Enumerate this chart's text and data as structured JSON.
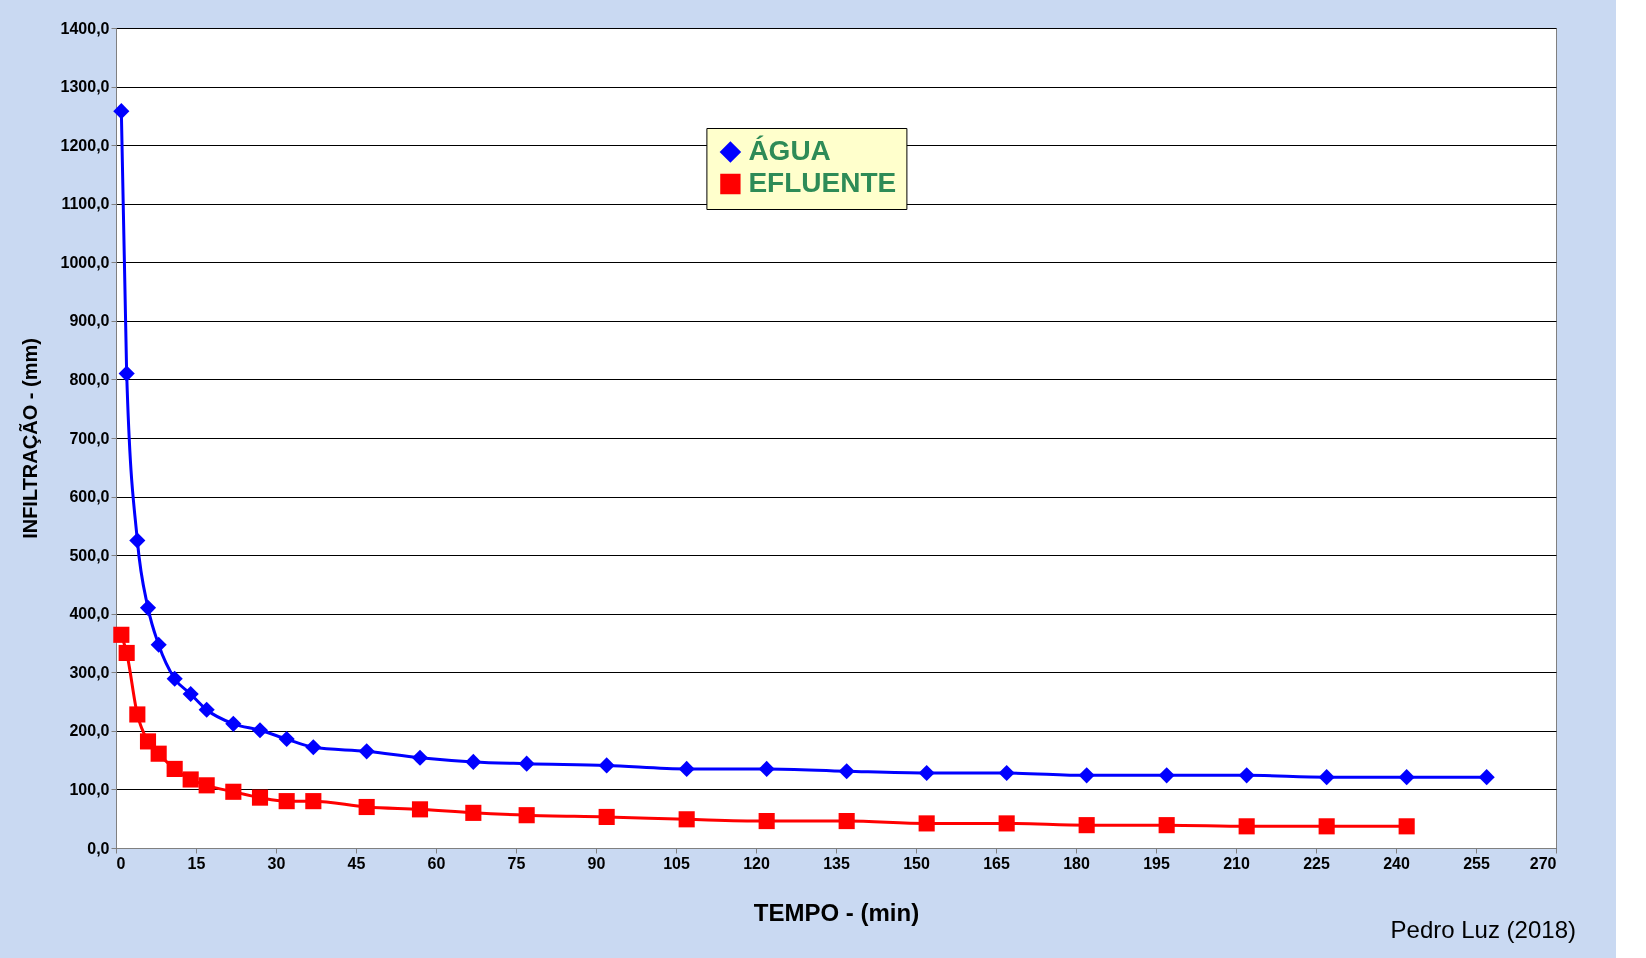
{
  "chart_data": {
    "type": "line",
    "xlabel": "TEMPO - (min)",
    "ylabel": "INFILTRAÇÃO - (mm)",
    "annotations": [
      "Pedro Luz (2018)"
    ],
    "xlim": [
      0,
      270
    ],
    "xticks": [
      0,
      15,
      30,
      45,
      60,
      75,
      90,
      105,
      120,
      135,
      150,
      165,
      180,
      195,
      210,
      225,
      240,
      255,
      270
    ],
    "ylim": [
      0,
      1400
    ],
    "yticks": [
      {
        "value": 0,
        "label": "0,0"
      },
      {
        "value": 100,
        "label": "100,0"
      },
      {
        "value": 200,
        "label": "200,0"
      },
      {
        "value": 300,
        "label": "300,0"
      },
      {
        "value": 400,
        "label": "400,0"
      },
      {
        "value": 500,
        "label": "500,0"
      },
      {
        "value": 600,
        "label": "600,0"
      },
      {
        "value": 700,
        "label": "700,0"
      },
      {
        "value": 800,
        "label": "800,0"
      },
      {
        "value": 900,
        "label": "900,0"
      },
      {
        "value": 1000,
        "label": "1000,0"
      },
      {
        "value": 1100,
        "label": "1100,0"
      },
      {
        "value": 1200,
        "label": "1200,0"
      },
      {
        "value": 1300,
        "label": "1300,0"
      },
      {
        "value": 1400,
        "label": "1400,0"
      }
    ],
    "grid": "y",
    "legend": "top",
    "line_style": "solid",
    "series": [
      {
        "name": "ÁGUA",
        "color": "#0000ff",
        "marker": "diamond",
        "x": [
          1,
          2,
          4,
          6,
          8,
          11,
          14,
          17,
          22,
          27,
          32,
          37,
          47,
          57,
          67,
          77,
          92,
          107,
          122,
          137,
          152,
          167,
          182,
          197,
          212,
          227,
          242,
          257
        ],
        "values": [
          1258,
          810,
          525,
          410,
          347,
          289,
          263,
          236,
          212,
          201,
          186,
          172,
          165,
          154,
          147,
          144,
          141,
          135,
          135,
          131,
          128,
          128,
          124,
          124,
          124,
          121,
          121,
          121
        ]
      },
      {
        "name": "EFLUENTE",
        "color": "#ff0000",
        "marker": "square",
        "x": [
          1,
          2,
          4,
          6,
          8,
          11,
          14,
          17,
          22,
          27,
          32,
          37,
          47,
          57,
          67,
          77,
          92,
          107,
          122,
          137,
          152,
          167,
          182,
          197,
          212,
          227,
          242
        ],
        "values": [
          364,
          333,
          228,
          182,
          161,
          135,
          117,
          107,
          96,
          86,
          80,
          80,
          70,
          66,
          60,
          56,
          53,
          49,
          46,
          46,
          42,
          42,
          39,
          39,
          37,
          37,
          37
        ]
      }
    ]
  }
}
